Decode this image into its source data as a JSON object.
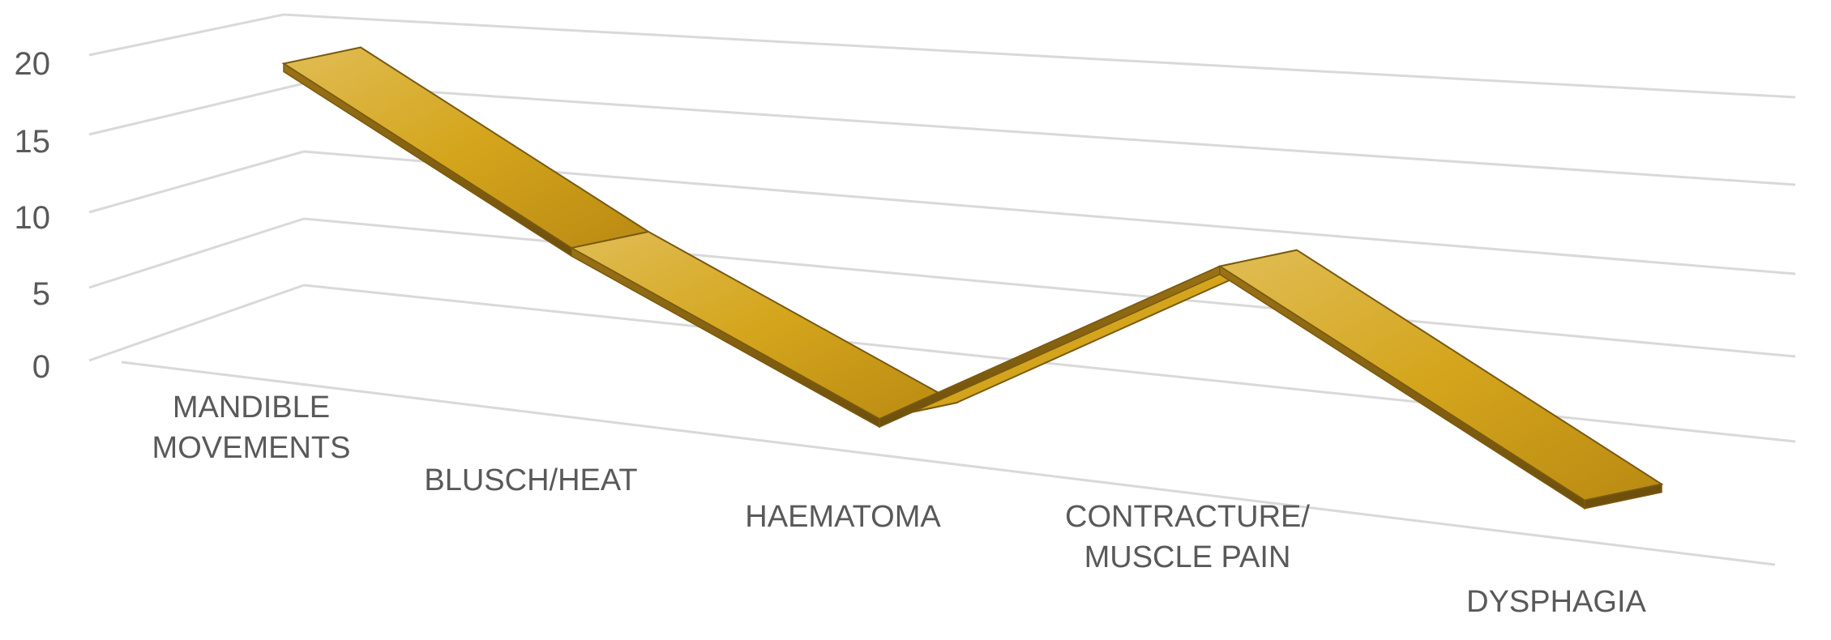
{
  "chart_data": {
    "type": "line",
    "style": "3d-ribbon",
    "categories": [
      [
        "MANDIBLE",
        "MOVEMENTS"
      ],
      [
        "BLUSCH/HEAT"
      ],
      [
        "HAEMATOMA"
      ],
      [
        "CONTRACTURE/",
        "MUSCLE PAIN"
      ],
      [
        "DYSPHAGIA"
      ]
    ],
    "values": [
      20,
      10,
      2,
      12,
      2
    ],
    "y_ticks": [
      "0",
      "5",
      "10",
      "15",
      "20"
    ],
    "ylim": [
      0,
      20
    ],
    "grid": true,
    "legend": "none",
    "colors": {
      "ribbon_top": "#d4a520",
      "ribbon_top_light": "#dcb23a",
      "ribbon_side": "#8a6410",
      "ribbon_side_dark": "#6e500c",
      "edge": "#7a5a10",
      "grid": "#d9d9d9",
      "text": "#595959"
    }
  }
}
